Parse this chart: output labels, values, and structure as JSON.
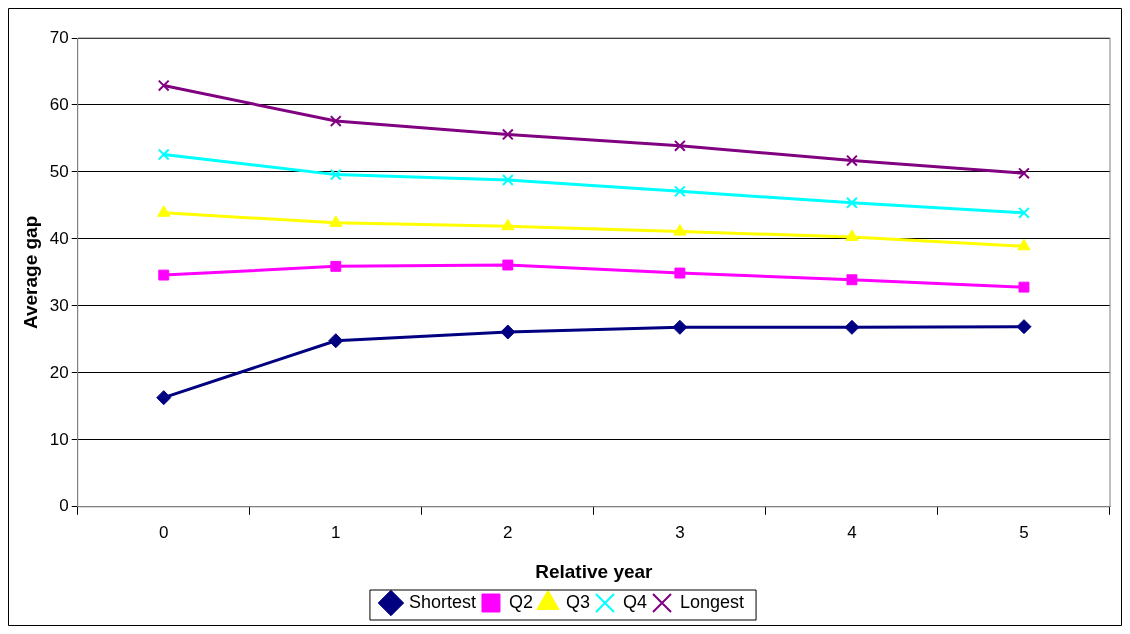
{
  "chart_data": {
    "type": "line",
    "xlabel": "Relative year",
    "ylabel": "Average gap",
    "categories": [
      "0",
      "1",
      "2",
      "3",
      "4",
      "5"
    ],
    "ylim": [
      0,
      70
    ],
    "yticks": [
      0,
      10,
      20,
      30,
      40,
      50,
      60,
      70
    ],
    "grid": "y",
    "legend": "bottom",
    "series": [
      {
        "name": "Shortest",
        "color": "#000080",
        "marker": "diamond",
        "values": [
          16.3,
          24.8,
          26.1,
          26.8,
          26.8,
          26.9
        ]
      },
      {
        "name": "Q2",
        "color": "#ff00ff",
        "marker": "square",
        "values": [
          34.6,
          35.9,
          36.1,
          34.9,
          33.9,
          32.8
        ]
      },
      {
        "name": "Q3",
        "color": "#ffff00",
        "marker": "triangle",
        "values": [
          43.9,
          42.4,
          41.9,
          41.1,
          40.3,
          38.9
        ]
      },
      {
        "name": "Q4",
        "color": "#00ffff",
        "marker": "cross",
        "values": [
          52.6,
          49.6,
          48.8,
          47.1,
          45.4,
          43.9
        ]
      },
      {
        "name": "Longest",
        "color": "#800080",
        "marker": "cross",
        "values": [
          62.9,
          57.6,
          55.6,
          53.9,
          51.7,
          49.8
        ]
      }
    ]
  }
}
